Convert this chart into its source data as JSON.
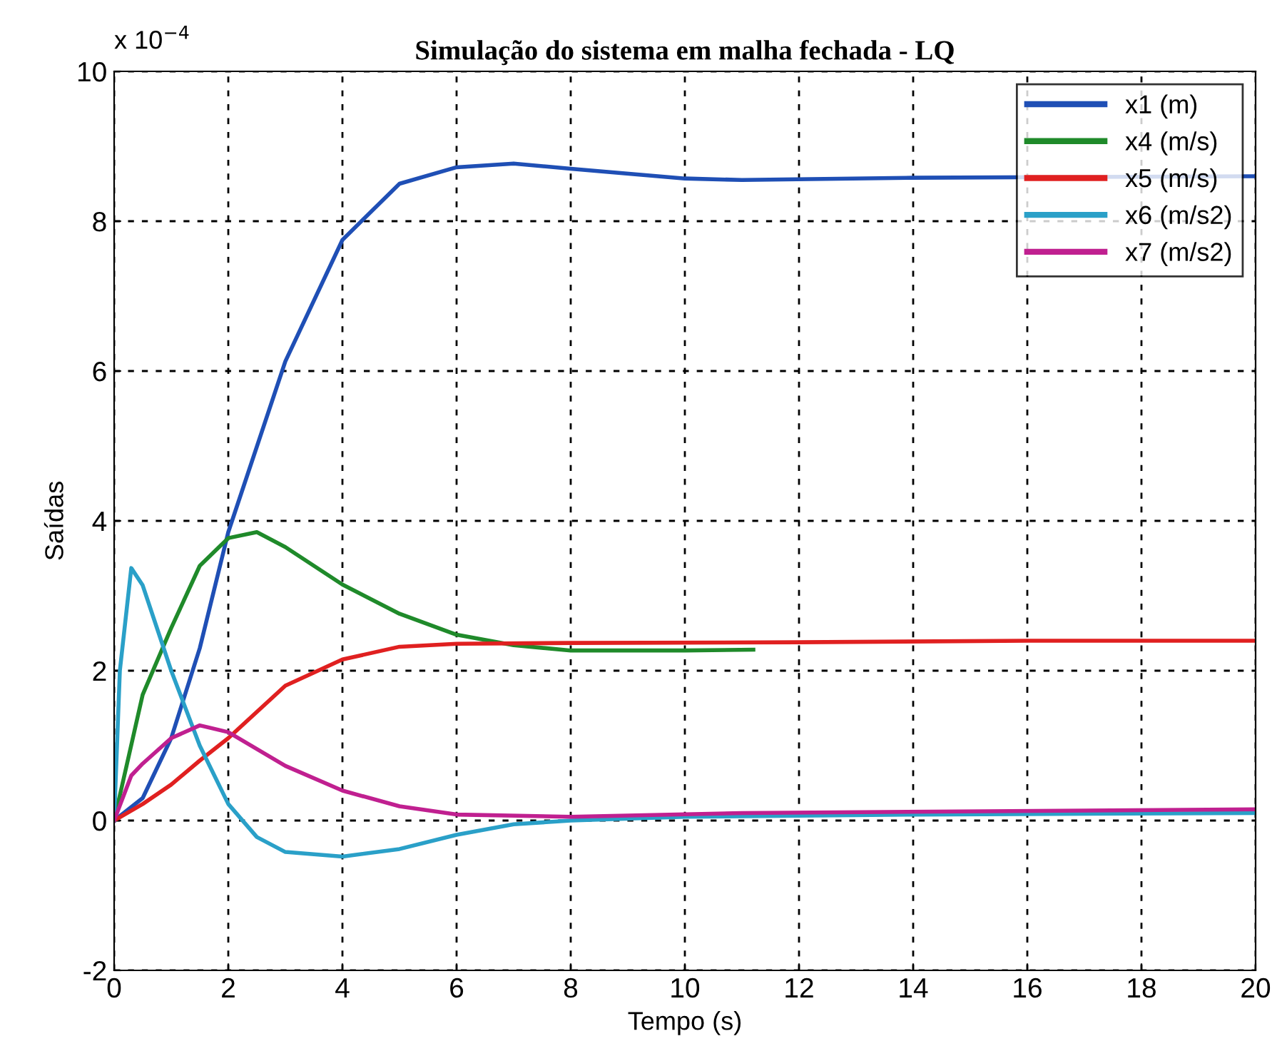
{
  "chart_data": {
    "type": "line",
    "title": "Simulação do sistema em malha fechada - LQ",
    "xlabel": "Tempo (s)",
    "ylabel": "Saídas",
    "annotations": [
      "x 10$^{−4}$"
    ],
    "xlim": [
      0,
      20
    ],
    "ylim": [
      -2,
      10
    ],
    "xticks": [
      0,
      2,
      4,
      6,
      8,
      10,
      12,
      14,
      16,
      18,
      20
    ],
    "yticks": [
      -2,
      0,
      2,
      4,
      6,
      8,
      10
    ],
    "grid": true,
    "legend": "top right",
    "line_style": "solid",
    "series": [
      {
        "name": "x1 (m)",
        "color": "#1f4fb5",
        "x": [
          0,
          0.5,
          1,
          1.5,
          2,
          3,
          4,
          5,
          6,
          7,
          8,
          10,
          11,
          14,
          20
        ],
        "values": [
          0,
          0.3,
          1.1,
          2.3,
          3.85,
          6.13,
          7.75,
          8.5,
          8.72,
          8.77,
          8.7,
          8.57,
          8.55,
          8.58,
          8.6
        ]
      },
      {
        "name": "x4 (m/s)",
        "color": "#1f8a2a",
        "x": [
          0,
          0.5,
          1,
          1.5,
          2,
          2.5,
          3,
          4,
          5,
          6,
          7,
          8,
          10,
          11.2
        ],
        "values": [
          0,
          1.68,
          2.57,
          3.4,
          3.77,
          3.85,
          3.65,
          3.15,
          2.76,
          2.48,
          2.34,
          2.27,
          2.27,
          2.28
        ]
      },
      {
        "name": "x5 (m/s)",
        "color": "#e02020",
        "x": [
          0,
          0.5,
          1,
          1.5,
          2,
          3,
          4,
          5,
          6,
          8,
          12,
          16,
          20
        ],
        "values": [
          0,
          0.22,
          0.48,
          0.8,
          1.1,
          1.8,
          2.15,
          2.32,
          2.36,
          2.37,
          2.38,
          2.4,
          2.4
        ]
      },
      {
        "name": "x6 (m/s2)",
        "color": "#2aa0c8",
        "x": [
          0,
          0.1,
          0.3,
          0.5,
          1,
          1.5,
          2,
          2.5,
          3,
          4,
          5,
          6,
          7,
          8,
          10,
          14,
          20
        ],
        "values": [
          0,
          2.0,
          3.37,
          3.14,
          2.0,
          1.0,
          0.22,
          -0.22,
          -0.42,
          -0.48,
          -0.38,
          -0.19,
          -0.05,
          0.0,
          0.05,
          0.08,
          0.1
        ]
      },
      {
        "name": "x7 (m/s2)",
        "color": "#c02090",
        "x": [
          0,
          0.3,
          0.5,
          1,
          1.5,
          2,
          3,
          4,
          5,
          6,
          8,
          11,
          20
        ],
        "values": [
          0,
          0.6,
          0.76,
          1.1,
          1.27,
          1.18,
          0.73,
          0.4,
          0.19,
          0.08,
          0.05,
          0.1,
          0.15
        ]
      }
    ]
  }
}
